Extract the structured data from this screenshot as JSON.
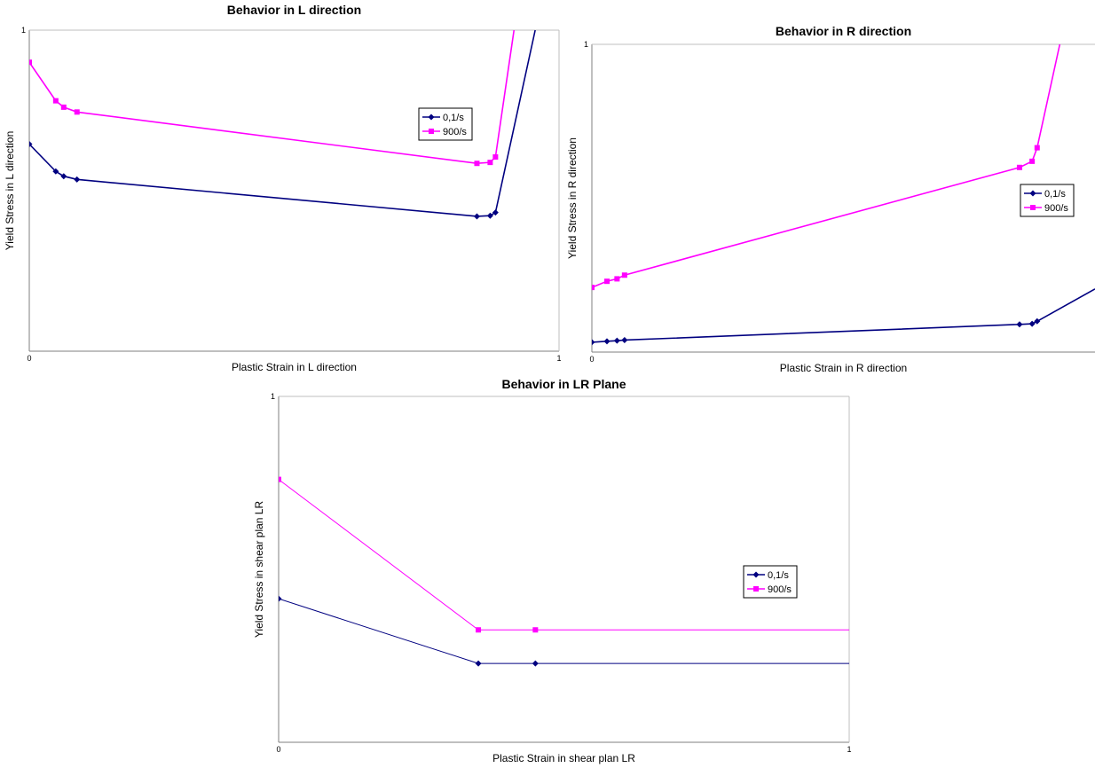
{
  "chart_data": [
    {
      "type": "line",
      "title": "Behavior in L direction",
      "xlabel": "Plastic Strain in L direction",
      "ylabel": "Yield Stress in L direction",
      "xlim": [
        0,
        1
      ],
      "ylim": [
        0,
        1
      ],
      "xticks": [
        "0",
        "1"
      ],
      "yticks": [
        "1"
      ],
      "grid": false,
      "legend_position": "right",
      "series": [
        {
          "name": "0,1/s",
          "color": "#000080",
          "marker": "diamond",
          "x": [
            0.0,
            0.05,
            0.065,
            0.09,
            0.845,
            0.87,
            0.88,
            0.955
          ],
          "y": [
            0.645,
            0.56,
            0.545,
            0.535,
            0.42,
            0.422,
            0.432,
            1.0
          ]
        },
        {
          "name": "900/s",
          "color": "#ff00ff",
          "marker": "square",
          "x": [
            0.0,
            0.05,
            0.065,
            0.09,
            0.845,
            0.87,
            0.88,
            0.915
          ],
          "y": [
            0.9,
            0.78,
            0.76,
            0.745,
            0.585,
            0.588,
            0.605,
            1.0
          ]
        }
      ]
    },
    {
      "type": "line",
      "title": "Behavior in R direction",
      "xlabel": "Plastic Strain in R direction",
      "ylabel": "Yield Stress in R direction",
      "xlim": [
        0,
        1
      ],
      "ylim": [
        0,
        1
      ],
      "xticks": [
        "0"
      ],
      "yticks": [
        "1"
      ],
      "grid": false,
      "legend_position": "right",
      "series": [
        {
          "name": "0,1/s",
          "color": "#000080",
          "marker": "diamond",
          "x": [
            0.0,
            0.03,
            0.05,
            0.065,
            0.85,
            0.875,
            0.885,
            1.0
          ],
          "y": [
            0.032,
            0.035,
            0.037,
            0.039,
            0.09,
            0.092,
            0.1,
            0.205
          ]
        },
        {
          "name": "900/s",
          "color": "#ff00ff",
          "marker": "square",
          "x": [
            0.0,
            0.03,
            0.05,
            0.065,
            0.85,
            0.875,
            0.885,
            0.93
          ],
          "y": [
            0.21,
            0.23,
            0.238,
            0.25,
            0.6,
            0.62,
            0.664,
            1.0
          ]
        }
      ]
    },
    {
      "type": "line",
      "title": "Behavior in LR Plane",
      "xlabel": "Plastic Strain in shear plan LR",
      "ylabel": "Yield Stress in shear plan LR",
      "xlim": [
        0,
        1
      ],
      "ylim": [
        0,
        1
      ],
      "xticks": [
        "0",
        "1"
      ],
      "yticks": [
        "1"
      ],
      "grid": false,
      "legend_position": "right",
      "series": [
        {
          "name": "0,1/s",
          "color": "#000080",
          "marker": "diamond",
          "x": [
            0.0,
            0.35,
            0.45,
            1.0
          ],
          "y": [
            0.415,
            0.228,
            0.228,
            0.228
          ],
          "markers_at": [
            0,
            1,
            2
          ]
        },
        {
          "name": "900/s",
          "color": "#ff00ff",
          "marker": "square",
          "x": [
            0.0,
            0.35,
            0.45,
            1.0
          ],
          "y": [
            0.76,
            0.325,
            0.325,
            0.325
          ],
          "markers_at": [
            0,
            1,
            2
          ]
        }
      ]
    }
  ]
}
